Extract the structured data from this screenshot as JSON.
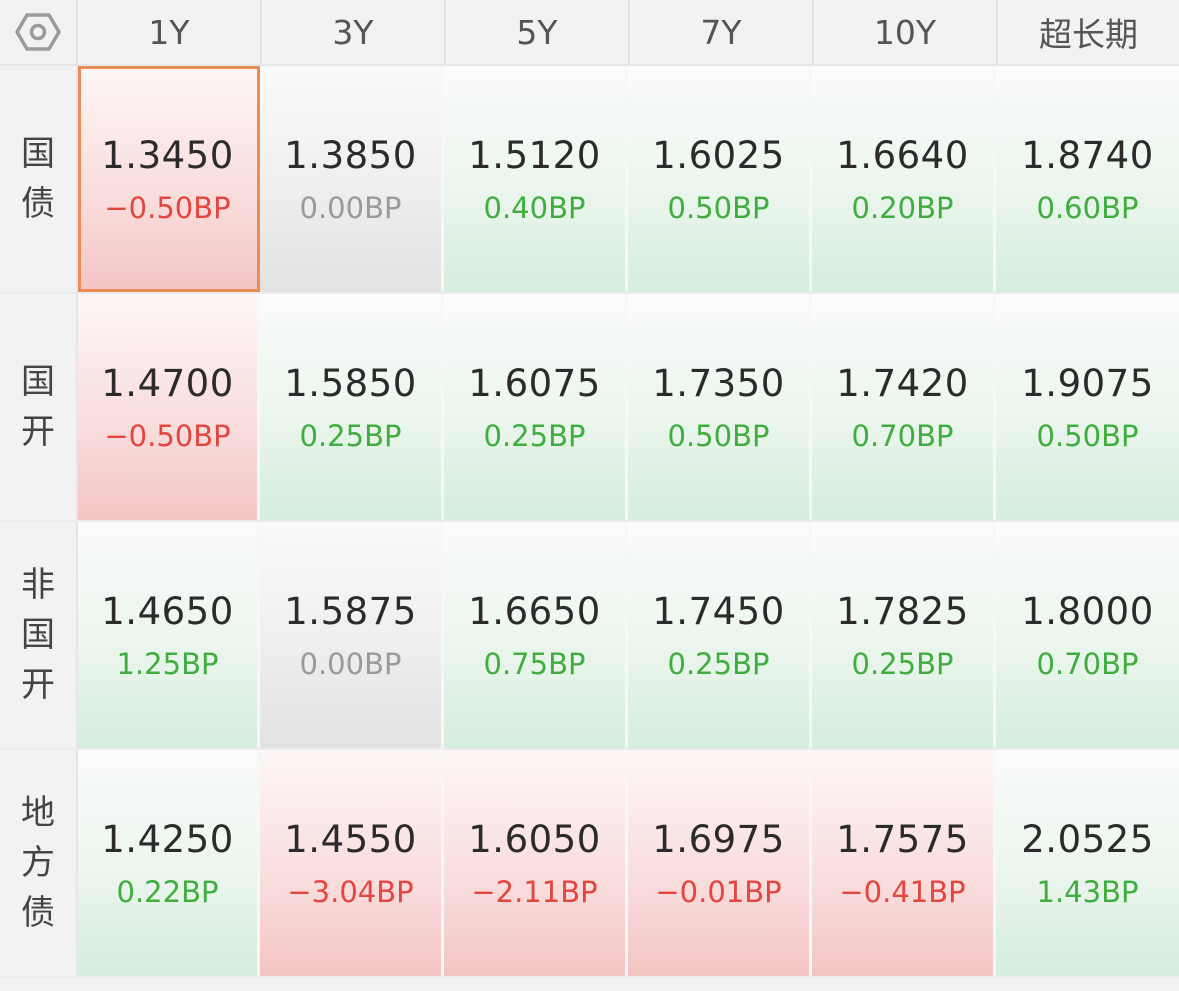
{
  "header": {
    "settings_icon": "gear-hexagon-icon",
    "columns": [
      "1Y",
      "3Y",
      "5Y",
      "7Y",
      "10Y",
      "超长期"
    ]
  },
  "rows": [
    {
      "label": [
        "国",
        "债"
      ],
      "cells": [
        {
          "yield": "1.3450",
          "change": "−0.50BP",
          "trend": "down",
          "selected": true
        },
        {
          "yield": "1.3850",
          "change": "0.00BP",
          "trend": "flat"
        },
        {
          "yield": "1.5120",
          "change": "0.40BP",
          "trend": "up"
        },
        {
          "yield": "1.6025",
          "change": "0.50BP",
          "trend": "up"
        },
        {
          "yield": "1.6640",
          "change": "0.20BP",
          "trend": "up"
        },
        {
          "yield": "1.8740",
          "change": "0.60BP",
          "trend": "up"
        }
      ]
    },
    {
      "label": [
        "国",
        "开"
      ],
      "cells": [
        {
          "yield": "1.4700",
          "change": "−0.50BP",
          "trend": "down"
        },
        {
          "yield": "1.5850",
          "change": "0.25BP",
          "trend": "up"
        },
        {
          "yield": "1.6075",
          "change": "0.25BP",
          "trend": "up"
        },
        {
          "yield": "1.7350",
          "change": "0.50BP",
          "trend": "up"
        },
        {
          "yield": "1.7420",
          "change": "0.70BP",
          "trend": "up"
        },
        {
          "yield": "1.9075",
          "change": "0.50BP",
          "trend": "up"
        }
      ]
    },
    {
      "label": [
        "非",
        "国",
        "开"
      ],
      "cells": [
        {
          "yield": "1.4650",
          "change": "1.25BP",
          "trend": "up"
        },
        {
          "yield": "1.5875",
          "change": "0.00BP",
          "trend": "flat"
        },
        {
          "yield": "1.6650",
          "change": "0.75BP",
          "trend": "up"
        },
        {
          "yield": "1.7450",
          "change": "0.25BP",
          "trend": "up"
        },
        {
          "yield": "1.7825",
          "change": "0.25BP",
          "trend": "up"
        },
        {
          "yield": "1.8000",
          "change": "0.70BP",
          "trend": "up"
        }
      ]
    },
    {
      "label": [
        "地",
        "方",
        "债"
      ],
      "cells": [
        {
          "yield": "1.4250",
          "change": "0.22BP",
          "trend": "up"
        },
        {
          "yield": "1.4550",
          "change": "−3.04BP",
          "trend": "down"
        },
        {
          "yield": "1.6050",
          "change": "−2.11BP",
          "trend": "down"
        },
        {
          "yield": "1.6975",
          "change": "−0.01BP",
          "trend": "down"
        },
        {
          "yield": "1.7575",
          "change": "−0.41BP",
          "trend": "down"
        },
        {
          "yield": "2.0525",
          "change": "1.43BP",
          "trend": "up"
        }
      ]
    }
  ],
  "colors": {
    "up": "#3fae3f",
    "down": "#e2463f",
    "flat": "#9a9a9a",
    "selected_border": "#ec8c55"
  }
}
